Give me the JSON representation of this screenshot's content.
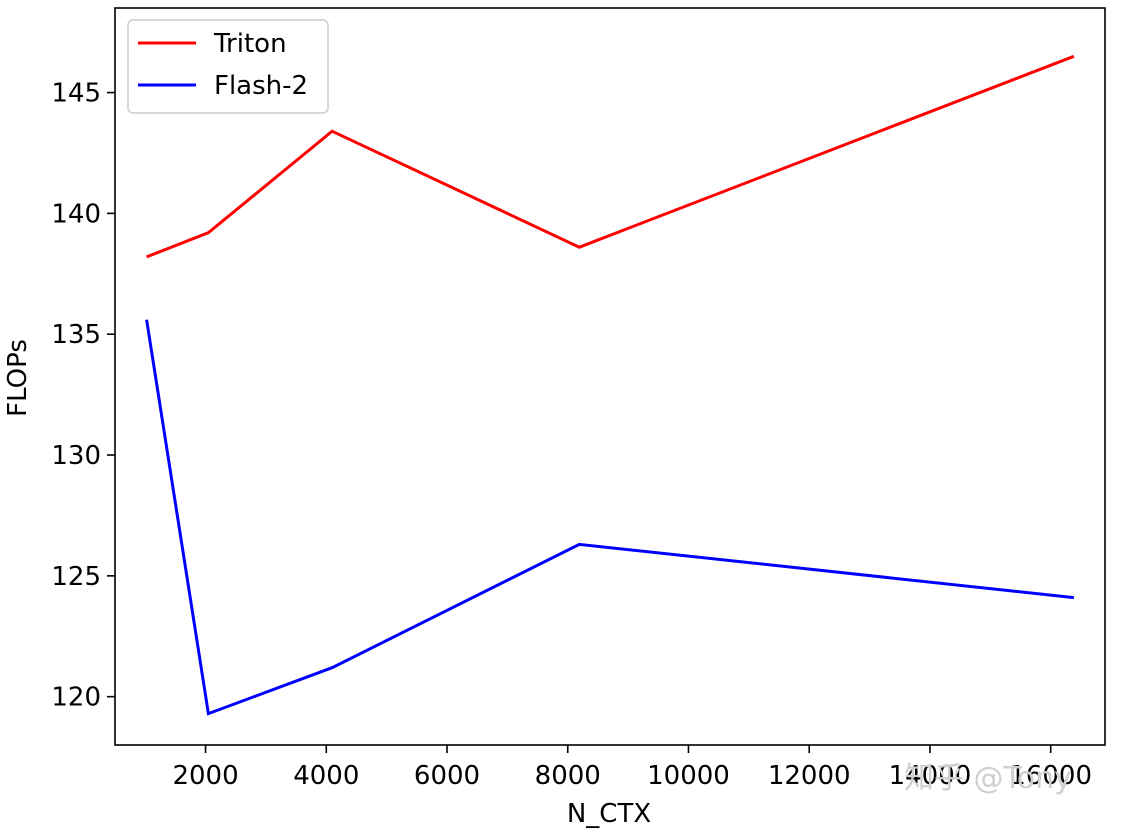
{
  "chart_data": {
    "type": "line",
    "title": "",
    "xlabel": "N_CTX",
    "ylabel": "FLOPs",
    "xlim": [
      500,
      16900
    ],
    "ylim": [
      118.0,
      148.5
    ],
    "xticks": [
      2000,
      4000,
      6000,
      8000,
      10000,
      12000,
      14000,
      16000
    ],
    "xtick_labels": [
      "2000",
      "4000",
      "6000",
      "8000",
      "10000",
      "12000",
      "14000",
      "16000"
    ],
    "yticks": [
      120,
      125,
      130,
      135,
      140,
      145
    ],
    "ytick_labels": [
      "120",
      "125",
      "130",
      "135",
      "140",
      "145"
    ],
    "grid": false,
    "legend_position": "top-left",
    "series": [
      {
        "name": "Triton",
        "color": "#ff0000",
        "x": [
          1024,
          2048,
          4096,
          8192,
          16384
        ],
        "y": [
          138.2,
          139.2,
          143.4,
          138.6,
          146.5
        ]
      },
      {
        "name": "Flash-2",
        "color": "#0000ff",
        "x": [
          1024,
          2048,
          4096,
          8192,
          16384
        ],
        "y": [
          135.6,
          119.3,
          121.2,
          126.3,
          124.1
        ]
      }
    ]
  },
  "watermark": {
    "text": "知乎 @Tony"
  }
}
